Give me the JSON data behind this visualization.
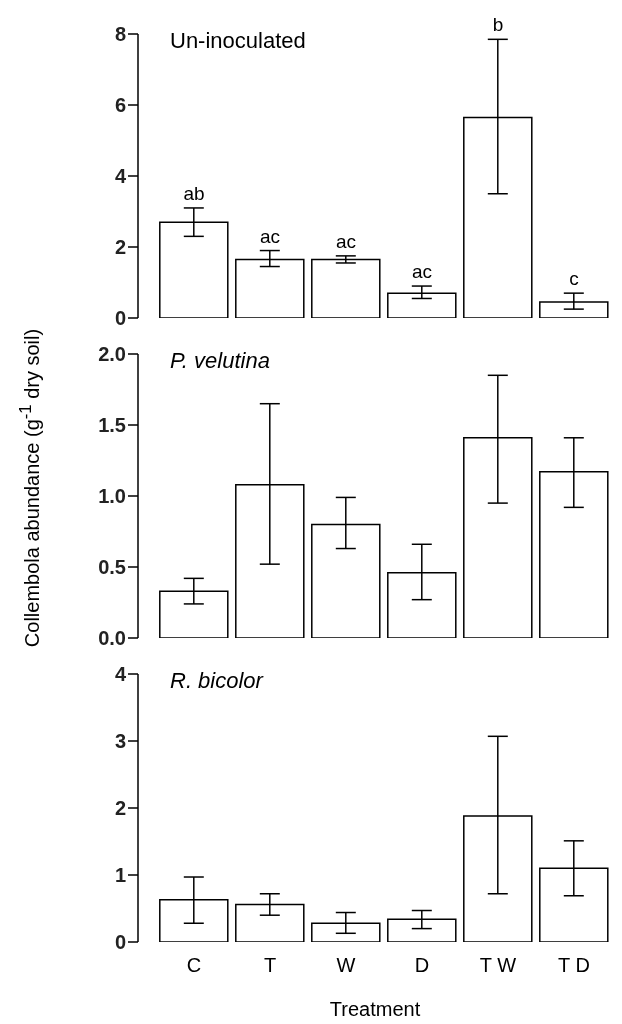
{
  "chart_data": [
    {
      "type": "bar",
      "title": "Un-inoculated",
      "categories": [
        "C",
        "T",
        "W",
        "D",
        "T W",
        "T D"
      ],
      "values": [
        2.7,
        1.65,
        1.65,
        0.7,
        5.65,
        0.45
      ],
      "color": "#ffffff",
      "errors": [
        [
          2.3,
          3.1
        ],
        [
          1.45,
          1.9
        ],
        [
          1.55,
          1.75
        ],
        [
          0.55,
          0.9
        ],
        [
          3.5,
          7.85
        ],
        [
          0.25,
          0.7
        ]
      ],
      "ylim": [
        0,
        8
      ],
      "yticks": [
        0,
        2,
        4,
        6,
        8
      ],
      "tick_labels": "y",
      "annotations": [
        {
          "text": "ab",
          "x": "C",
          "y": 3.1
        },
        {
          "text": "ac",
          "x": "T",
          "y": 1.9
        },
        {
          "text": "ac",
          "x": "W",
          "y": 1.75
        },
        {
          "text": "ac",
          "x": "D",
          "y": 0.9
        },
        {
          "text": "b",
          "x": "T W",
          "y": 7.85
        },
        {
          "text": "c",
          "x": "T D",
          "y": 0.7
        }
      ]
    },
    {
      "type": "bar",
      "title": "P. velutina",
      "ylabel": "Collembola abundance (g$^{-1}$ dry soil)",
      "categories": [
        "C",
        "T",
        "W",
        "D",
        "T W",
        "T D"
      ],
      "values": [
        0.33,
        1.08,
        0.8,
        0.46,
        1.41,
        1.17
      ],
      "color": "#ffffff",
      "errors": [
        [
          0.24,
          0.42
        ],
        [
          0.52,
          1.65
        ],
        [
          0.63,
          0.99
        ],
        [
          0.27,
          0.66
        ],
        [
          0.95,
          1.85
        ],
        [
          0.92,
          1.41
        ]
      ],
      "ylim": [
        0,
        2
      ],
      "yticks": [
        {
          "value": 0,
          "label": "0.0"
        },
        {
          "value": 0.5,
          "label": "0.5"
        },
        {
          "value": 1,
          "label": "1.0"
        },
        {
          "value": 1.5,
          "label": "1.5"
        },
        {
          "value": 2,
          "label": "2.0"
        }
      ],
      "tick_labels": "y"
    },
    {
      "type": "bar",
      "title": "R. bicolor",
      "xlabel": "Treatment",
      "categories": [
        "C",
        "T",
        "W",
        "D",
        "T W",
        "T D"
      ],
      "values": [
        0.63,
        0.56,
        0.28,
        0.34,
        1.88,
        1.1
      ],
      "color": "#ffffff",
      "errors": [
        [
          0.28,
          0.97
        ],
        [
          0.4,
          0.72
        ],
        [
          0.13,
          0.44
        ],
        [
          0.2,
          0.47
        ],
        [
          0.72,
          3.07
        ],
        [
          0.69,
          1.51
        ]
      ],
      "ylim": [
        0,
        4
      ],
      "yticks": [
        0,
        1,
        2,
        3,
        4
      ]
    }
  ]
}
